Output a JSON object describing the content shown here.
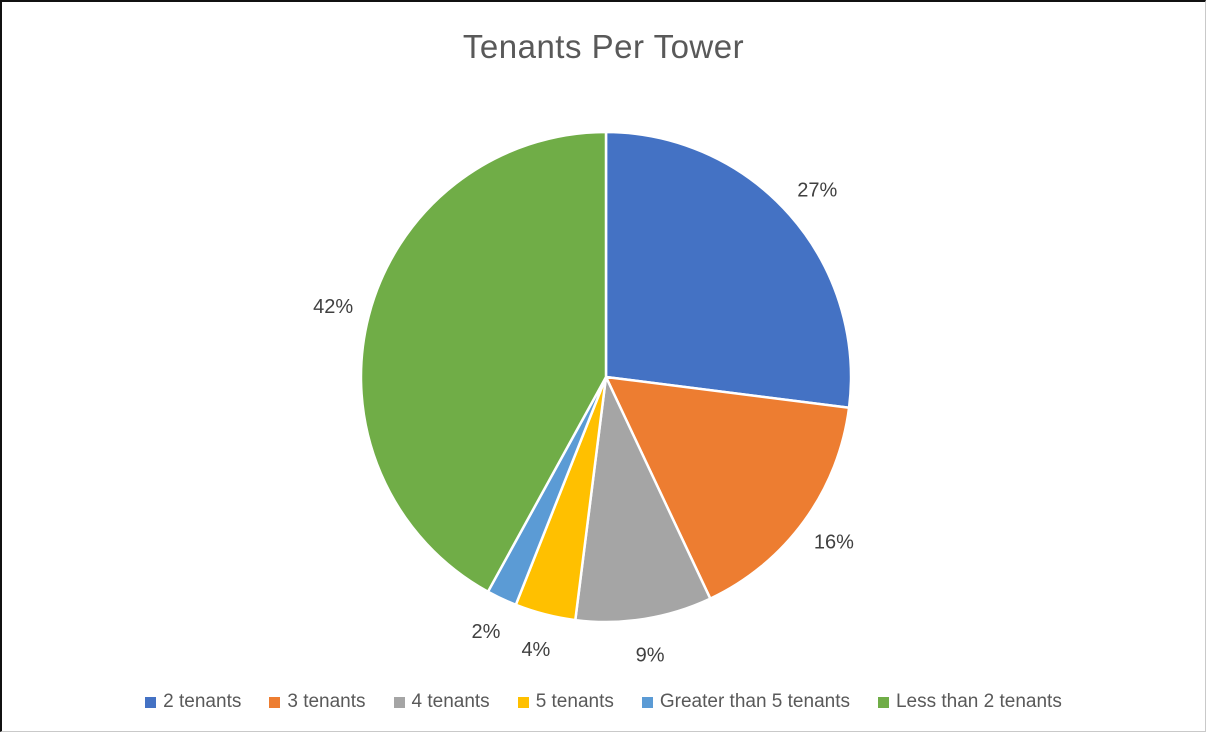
{
  "title": "Tenants Per Tower",
  "text_colors": {
    "title": "#595959",
    "percent_labels": "#404040",
    "legend": "#595959"
  },
  "chart_data": {
    "type": "pie",
    "title": "Tenants Per Tower",
    "start_angle_deg": 0,
    "direction": "clockwise",
    "legend_position": "bottom",
    "data_labels": "outside-percent",
    "slices": [
      {
        "label": "2 tenants",
        "value": 27,
        "percent_label": "27%",
        "color": "#4472C4"
      },
      {
        "label": "3 tenants",
        "value": 16,
        "percent_label": "16%",
        "color": "#ED7D31"
      },
      {
        "label": "4 tenants",
        "value": 9,
        "percent_label": "9%",
        "color": "#A5A5A5"
      },
      {
        "label": "5 tenants",
        "value": 4,
        "percent_label": "4%",
        "color": "#FFC000"
      },
      {
        "label": "Greater than 5 tenants",
        "value": 2,
        "percent_label": "2%",
        "color": "#5B9BD5"
      },
      {
        "label": "Less than 2 tenants",
        "value": 42,
        "percent_label": "42%",
        "color": "#70AD47"
      }
    ]
  }
}
